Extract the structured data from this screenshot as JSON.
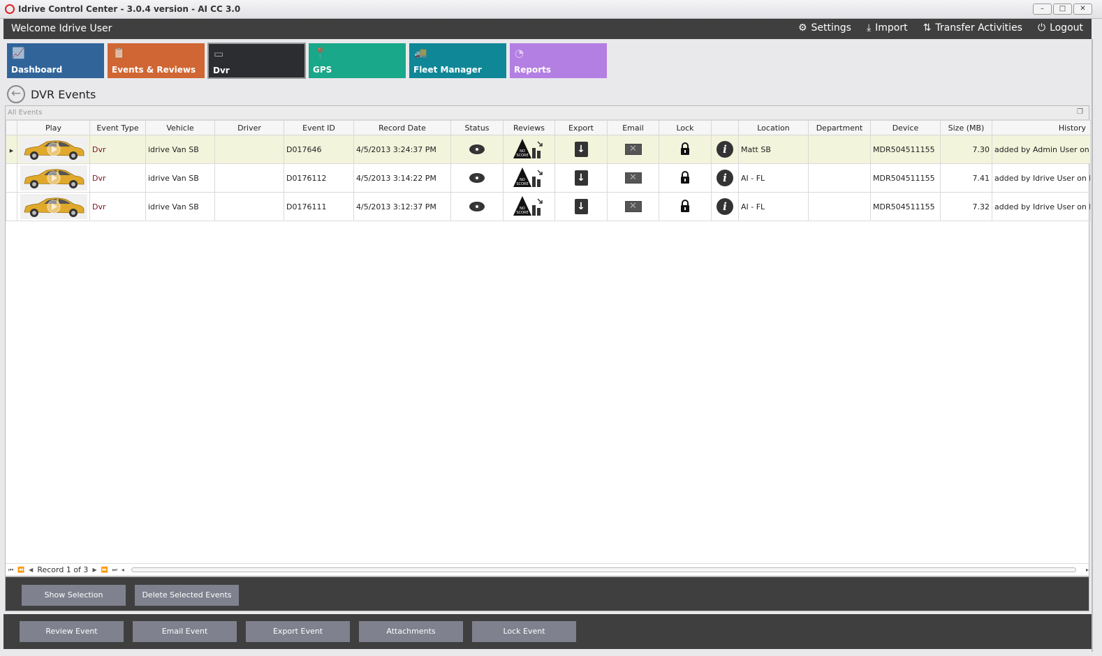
{
  "window": {
    "title": "Idrive Control Center - 3.0.4 version - AI CC 3.0",
    "controls": [
      "–",
      "□",
      "✕"
    ]
  },
  "topbar": {
    "welcome": "Welcome Idrive User",
    "menu": [
      {
        "label": "Settings",
        "icon": "gear-icon",
        "glyph": "⚙"
      },
      {
        "label": "Import",
        "icon": "download-icon",
        "glyph": "⤓"
      },
      {
        "label": "Transfer Activities",
        "icon": "transfer-icon",
        "glyph": "⇅"
      },
      {
        "label": "Logout",
        "icon": "power-icon",
        "glyph": "⏻"
      }
    ]
  },
  "tiles": [
    {
      "label": "Dashboard",
      "color": "#31659a",
      "icon": "chart-icon",
      "glyph": "📈"
    },
    {
      "label": "Events & Reviews",
      "color": "#cf6633",
      "icon": "clipboard-icon",
      "glyph": "📋"
    },
    {
      "label": "Dvr",
      "color": "#2b2d31",
      "icon": "dvr-icon",
      "glyph": "▭",
      "active": true
    },
    {
      "label": "GPS",
      "color": "#19a889",
      "icon": "map-pin-icon",
      "glyph": "📍"
    },
    {
      "label": "Fleet Manager",
      "color": "#0f8797",
      "icon": "fleet-icon",
      "glyph": "🚚"
    },
    {
      "label": "Reports",
      "color": "#b37fe2",
      "icon": "pie-chart-icon",
      "glyph": "◔"
    }
  ],
  "page": {
    "title": "DVR Events",
    "group_label": "All Events"
  },
  "table": {
    "columns": [
      "",
      "Play",
      "Event Type",
      "Vehicle",
      "Driver",
      "Event ID",
      "Record Date",
      "Status",
      "Reviews",
      "Export",
      "Email",
      "Lock",
      "",
      "Location",
      "Department",
      "Device",
      "Size (MB)",
      "History"
    ],
    "rows": [
      {
        "event_type": "Dvr",
        "vehicle": "idrive Van SB",
        "driver": "",
        "event_id": "D017646",
        "record_date": "4/5/2013 3:24:37 PM",
        "location": "Matt SB",
        "department": "",
        "device": "MDR504511155",
        "size": "7.30",
        "history": "added by Admin User on loca",
        "selected": true
      },
      {
        "event_type": "Dvr",
        "vehicle": "idrive Van SB",
        "driver": "",
        "event_id": "D0176112",
        "record_date": "4/5/2013 3:14:22 PM",
        "location": "AI - FL",
        "department": "",
        "device": "MDR504511155",
        "size": "7.41",
        "history": "added by Idrive User on loca"
      },
      {
        "event_type": "Dvr",
        "vehicle": "idrive Van SB",
        "driver": "",
        "event_id": "D0176111",
        "record_date": "4/5/2013 3:12:37 PM",
        "location": "AI - FL",
        "department": "",
        "device": "MDR504511155",
        "size": "7.32",
        "history": "added by Idrive User on loca"
      }
    ],
    "review_badge": "NO SCORE"
  },
  "pager": {
    "record_text": "Record 1 of 3"
  },
  "actions": {
    "show_selection": "Show Selection",
    "delete_selected": "Delete Selected  Events"
  },
  "bottom_actions": [
    "Review Event",
    "Email Event",
    "Export Event",
    "Attachments",
    "Lock Event"
  ]
}
